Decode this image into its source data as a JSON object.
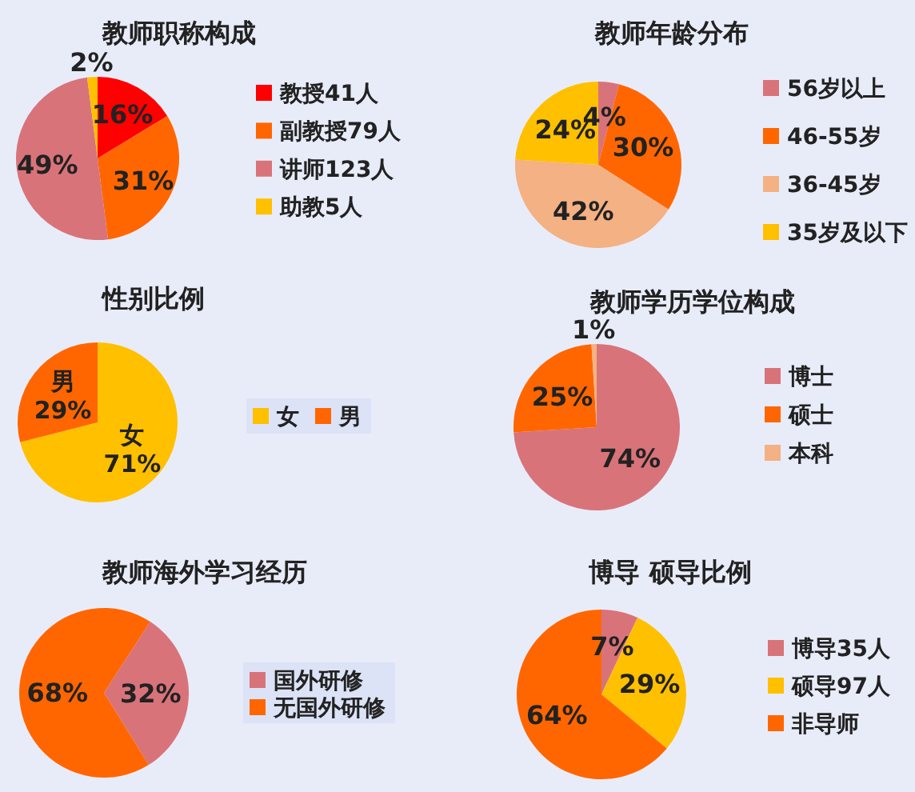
{
  "chart_data": [
    {
      "type": "pie",
      "title": "教师职称构成",
      "categories": [
        "教授41人",
        "副教授79人",
        "讲师123人",
        "助教5人"
      ],
      "values": [
        16,
        31,
        49,
        2
      ],
      "value_labels": [
        "16%",
        "31%",
        "49%",
        "2%"
      ],
      "colors": [
        "#ff0000",
        "#ff6600",
        "#d9737a",
        "#ffc000"
      ],
      "legend": "right"
    },
    {
      "type": "pie",
      "title": "教师年龄分布",
      "categories": [
        "56岁以上",
        "46-55岁",
        "36-45岁",
        "35岁及以下"
      ],
      "values": [
        4,
        30,
        42,
        24
      ],
      "value_labels": [
        "4%",
        "30%",
        "42%",
        "24%"
      ],
      "colors": [
        "#d9737a",
        "#ff6600",
        "#f4b183",
        "#ffc000"
      ],
      "legend": "right"
    },
    {
      "type": "pie",
      "title": "性别比例",
      "categories": [
        "女",
        "男"
      ],
      "values": [
        71,
        29
      ],
      "value_labels": [
        "女 71%",
        "男 29%"
      ],
      "colors": [
        "#ffc000",
        "#ff6600"
      ],
      "legend": "right"
    },
    {
      "type": "pie",
      "title": "教师学历学位构成",
      "categories": [
        "博士",
        "硕士",
        "本科"
      ],
      "values": [
        74,
        25,
        1
      ],
      "value_labels": [
        "74%",
        "25%",
        "1%"
      ],
      "colors": [
        "#d9737a",
        "#ff6600",
        "#f4b183"
      ],
      "legend": "right"
    },
    {
      "type": "pie",
      "title": "教师海外学习经历",
      "categories": [
        "国外研修",
        "无国外研修"
      ],
      "values": [
        32,
        68
      ],
      "value_labels": [
        "32%",
        "68%"
      ],
      "colors": [
        "#d9737a",
        "#ff6600"
      ],
      "legend": "right"
    },
    {
      "type": "pie",
      "title": "博导 硕导比例",
      "categories": [
        "博导35人",
        "硕导97人",
        "非导师"
      ],
      "values": [
        7,
        29,
        64
      ],
      "value_labels": [
        "7%",
        "29%",
        "64%"
      ],
      "colors": [
        "#d9737a",
        "#ffc000",
        "#ff6600"
      ],
      "legend": "right"
    }
  ]
}
